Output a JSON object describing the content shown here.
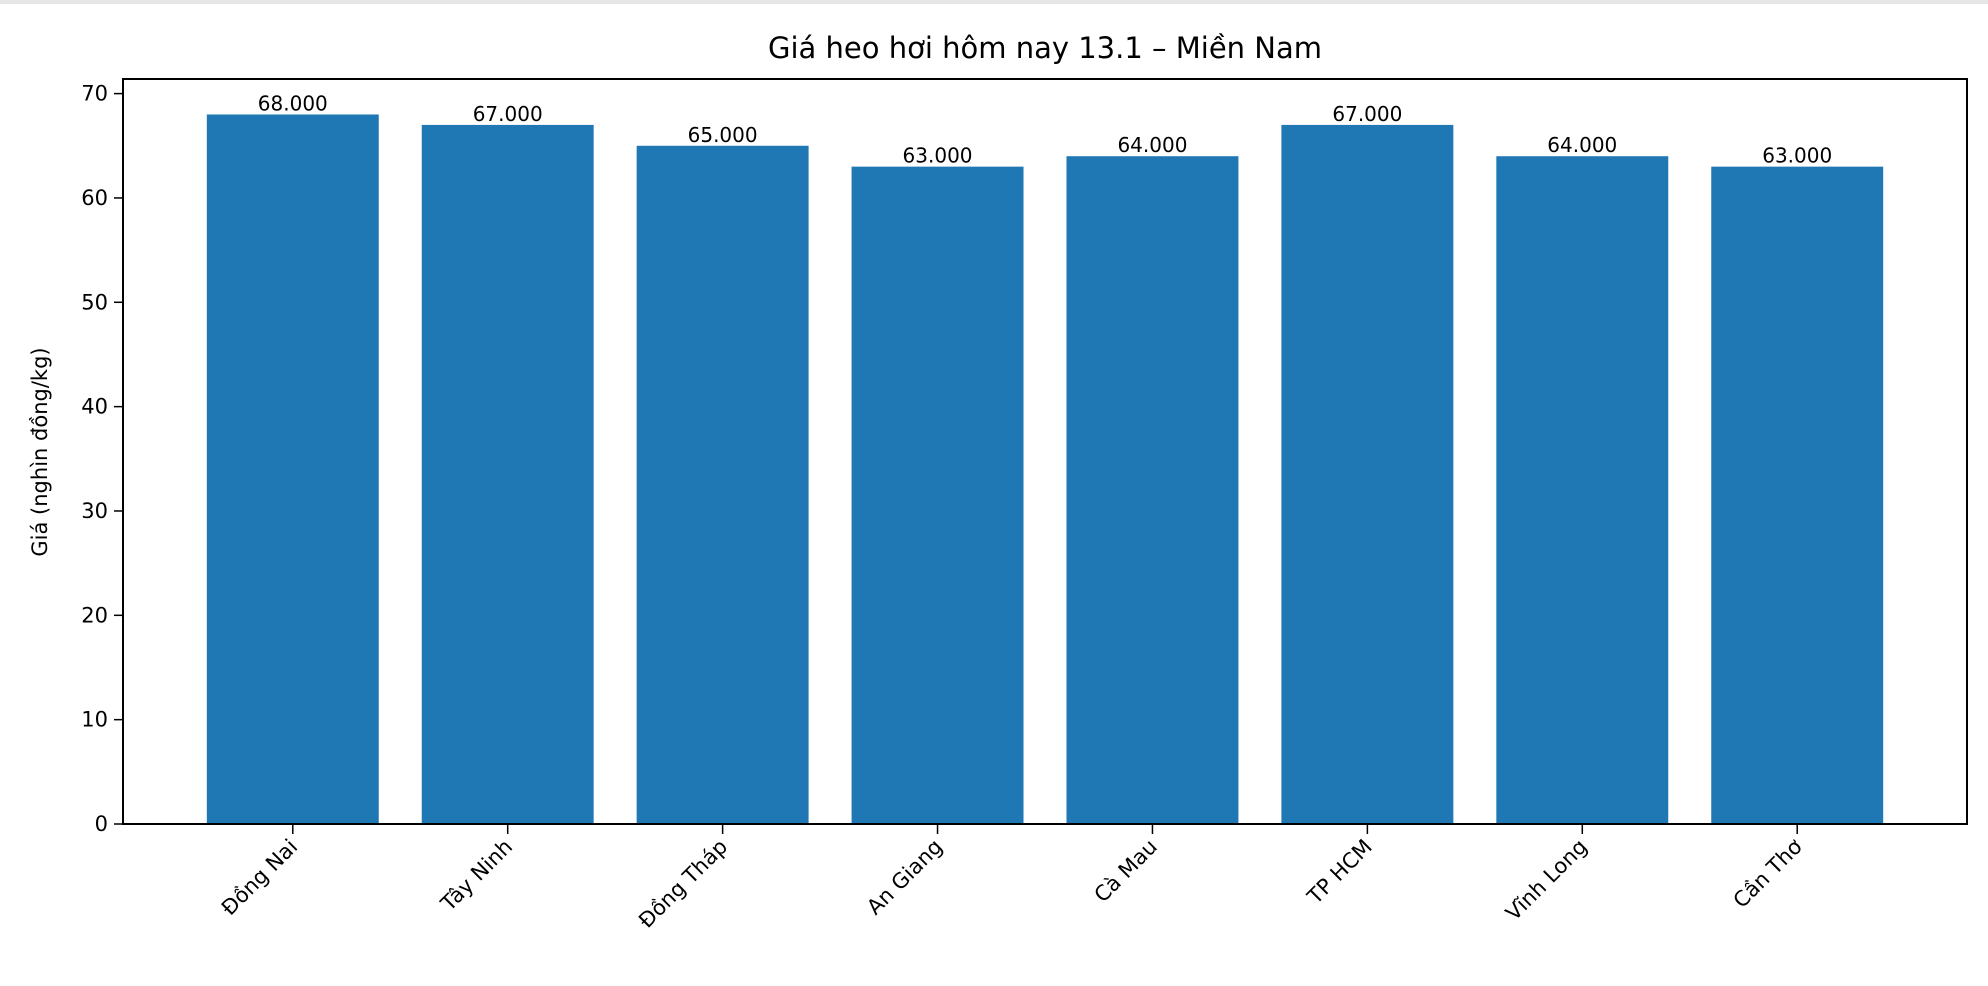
{
  "chart_data": {
    "type": "bar",
    "title": "Giá heo hơi hôm nay 13.1 – Miền Nam",
    "xlabel": "",
    "ylabel": "Giá (nghìn đồng/kg)",
    "categories": [
      "Đồng Nai",
      "Tây Ninh",
      "Đồng Tháp",
      "An Giang",
      "Cà Mau",
      "TP HCM",
      "Vĩnh Long",
      "Cần Thơ"
    ],
    "values": [
      68,
      67,
      65,
      63,
      64,
      67,
      64,
      63
    ],
    "value_labels": [
      "68.000",
      "67.000",
      "65.000",
      "63.000",
      "64.000",
      "67.000",
      "64.000",
      "63.000"
    ],
    "ylim": [
      0,
      71.4
    ],
    "yticks": [
      0,
      10,
      20,
      30,
      40,
      50,
      60,
      70
    ],
    "grid": false,
    "legend": null,
    "bar_color": "#1f77b4",
    "xtick_rotation": 45
  }
}
